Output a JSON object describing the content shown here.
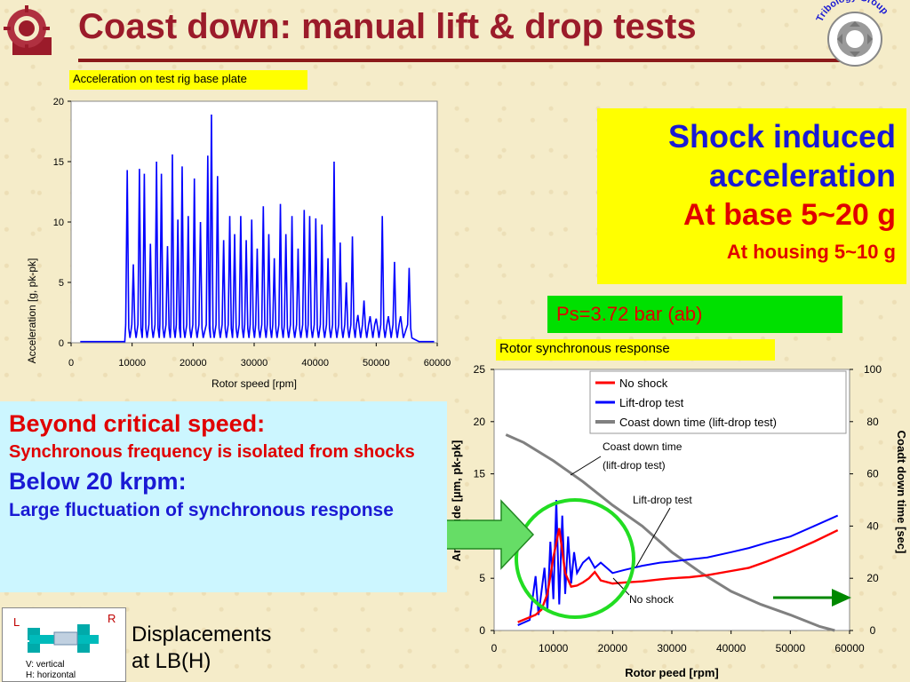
{
  "title": "Coast down: manual lift & drop tests",
  "tribology_label": "Tribology Group",
  "shock_box": {
    "line1": "Shock induced",
    "line2": "acceleration",
    "line3": "At base 5~20 g",
    "line4": "At housing 5~10 g"
  },
  "ps_label": "Ps=3.72 bar (ab)",
  "info_box": {
    "h1": "Beyond critical speed:",
    "t1": "Synchronous frequency is isolated from shocks",
    "h2": "Below 20 krpm:",
    "t2": "Large fluctuation of synchronous response"
  },
  "displacement_text": {
    "line1": "Displacements",
    "line2": "at LB(H)"
  },
  "lr_diagram": {
    "left": "L",
    "right": "R",
    "v_label": "V: vertical",
    "h_label": "H: horizontal"
  },
  "chart_data": [
    {
      "type": "line",
      "panel_label": "Acceleration on test rig base plate",
      "xlabel": "Rotor speed [rpm]",
      "ylabel": "Acceleration [g, pk-pk]",
      "xlim": [
        0,
        60000
      ],
      "ylim": [
        0,
        20
      ],
      "xticks": [
        "0",
        "10000",
        "20000",
        "30000",
        "40000",
        "50000",
        "60000"
      ],
      "yticks": [
        "0",
        "5",
        "10",
        "15",
        "20"
      ],
      "color": "#0000ff",
      "baseline": 0.1,
      "spikes": [
        {
          "x": 9200,
          "y": 14.3
        },
        {
          "x": 10200,
          "y": 6.5
        },
        {
          "x": 11200,
          "y": 14.4
        },
        {
          "x": 12000,
          "y": 14.0
        },
        {
          "x": 13000,
          "y": 8.2
        },
        {
          "x": 14000,
          "y": 15.0
        },
        {
          "x": 14800,
          "y": 14.0
        },
        {
          "x": 15800,
          "y": 8.0
        },
        {
          "x": 16600,
          "y": 15.6
        },
        {
          "x": 17500,
          "y": 10.2
        },
        {
          "x": 18200,
          "y": 14.6
        },
        {
          "x": 19200,
          "y": 10.5
        },
        {
          "x": 20200,
          "y": 13.6
        },
        {
          "x": 21200,
          "y": 10.0
        },
        {
          "x": 22400,
          "y": 15.5
        },
        {
          "x": 23000,
          "y": 18.9
        },
        {
          "x": 24000,
          "y": 13.8
        },
        {
          "x": 25000,
          "y": 8.5
        },
        {
          "x": 26000,
          "y": 10.5
        },
        {
          "x": 26800,
          "y": 9.0
        },
        {
          "x": 27800,
          "y": 10.5
        },
        {
          "x": 28700,
          "y": 8.5
        },
        {
          "x": 29600,
          "y": 10.2
        },
        {
          "x": 30500,
          "y": 7.8
        },
        {
          "x": 31500,
          "y": 11.3
        },
        {
          "x": 32400,
          "y": 9.0
        },
        {
          "x": 33300,
          "y": 7.0
        },
        {
          "x": 34300,
          "y": 11.5
        },
        {
          "x": 35200,
          "y": 9.0
        },
        {
          "x": 36200,
          "y": 10.5
        },
        {
          "x": 37200,
          "y": 7.8
        },
        {
          "x": 38200,
          "y": 11.0
        },
        {
          "x": 39100,
          "y": 10.5
        },
        {
          "x": 40100,
          "y": 10.3
        },
        {
          "x": 41100,
          "y": 9.8
        },
        {
          "x": 42100,
          "y": 7.0
        },
        {
          "x": 43100,
          "y": 15.0
        },
        {
          "x": 44100,
          "y": 8.3
        },
        {
          "x": 45100,
          "y": 5.0
        },
        {
          "x": 46100,
          "y": 8.8
        },
        {
          "x": 47000,
          "y": 2.3
        },
        {
          "x": 48000,
          "y": 3.5
        },
        {
          "x": 49000,
          "y": 2.2
        },
        {
          "x": 50000,
          "y": 2.0
        },
        {
          "x": 51000,
          "y": 10.5
        },
        {
          "x": 52000,
          "y": 2.2
        },
        {
          "x": 53000,
          "y": 6.7
        },
        {
          "x": 54000,
          "y": 2.2
        },
        {
          "x": 55400,
          "y": 6.2
        }
      ]
    },
    {
      "type": "line",
      "panel_label": "Rotor synchronous response",
      "xlabel": "Rotor peed [rpm]",
      "ylabel": "Amplitude [µm, pk-pk]",
      "y2label": "Coadt down time [sec]",
      "xlim": [
        0,
        60000
      ],
      "ylim": [
        0,
        25
      ],
      "y2lim": [
        0,
        100
      ],
      "xticks": [
        "0",
        "10000",
        "20000",
        "30000",
        "40000",
        "50000",
        "60000"
      ],
      "yticks": [
        "0",
        "5",
        "10",
        "15",
        "20",
        "25"
      ],
      "y2ticks": [
        "0",
        "20",
        "40",
        "60",
        "80",
        "100"
      ],
      "legend_position": "top-right",
      "series": [
        {
          "name": "No shock",
          "color": "#ff0000",
          "axis": "left",
          "x": [
            4000,
            7000,
            8000,
            9000,
            10000,
            11000,
            12000,
            13000,
            14000,
            15000,
            16000,
            17000,
            18000,
            20000,
            22000,
            25000,
            28000,
            30000,
            33000,
            36000,
            40000,
            43000,
            46000,
            50000,
            54000,
            58000
          ],
          "y": [
            0.8,
            1.5,
            2.0,
            3.5,
            7.0,
            9.8,
            5.5,
            4.2,
            4.3,
            4.6,
            5.0,
            5.6,
            4.8,
            4.5,
            4.6,
            4.7,
            4.9,
            5.0,
            5.1,
            5.3,
            5.7,
            6.0,
            6.6,
            7.5,
            8.5,
            9.6
          ]
        },
        {
          "name": "Lift-drop test",
          "color": "#0000ff",
          "axis": "left",
          "x": [
            4000,
            6000,
            7000,
            7500,
            8500,
            9000,
            9500,
            10000,
            10500,
            11000,
            11500,
            12000,
            12500,
            13000,
            13500,
            14000,
            15000,
            16000,
            17000,
            18000,
            19000,
            20000,
            22000,
            25000,
            28000,
            30000,
            33000,
            36000,
            40000,
            43000,
            46000,
            50000,
            54000,
            58000
          ],
          "y": [
            0.5,
            1.0,
            5.2,
            1.5,
            6.0,
            2.0,
            8.5,
            3.0,
            12.5,
            2.5,
            11.0,
            3.5,
            9.0,
            4.5,
            7.5,
            5.5,
            6.5,
            7.0,
            6.0,
            6.5,
            6.0,
            5.5,
            5.8,
            6.2,
            6.5,
            6.6,
            6.8,
            7.0,
            7.5,
            7.9,
            8.4,
            9.0,
            10.0,
            11.0
          ]
        },
        {
          "name": "Coast down time (lift-drop test)",
          "color": "#808080",
          "axis": "right",
          "x": [
            2000,
            5000,
            10000,
            15000,
            20000,
            25000,
            30000,
            35000,
            40000,
            45000,
            50000,
            55000,
            57500
          ],
          "y": [
            75,
            72,
            65,
            57,
            48,
            40,
            30,
            22,
            15,
            10,
            6,
            1.5,
            0
          ]
        }
      ],
      "annotations": [
        "Coast down time",
        "(lift-drop test)",
        "Lift-drop test",
        "No shock"
      ]
    }
  ]
}
